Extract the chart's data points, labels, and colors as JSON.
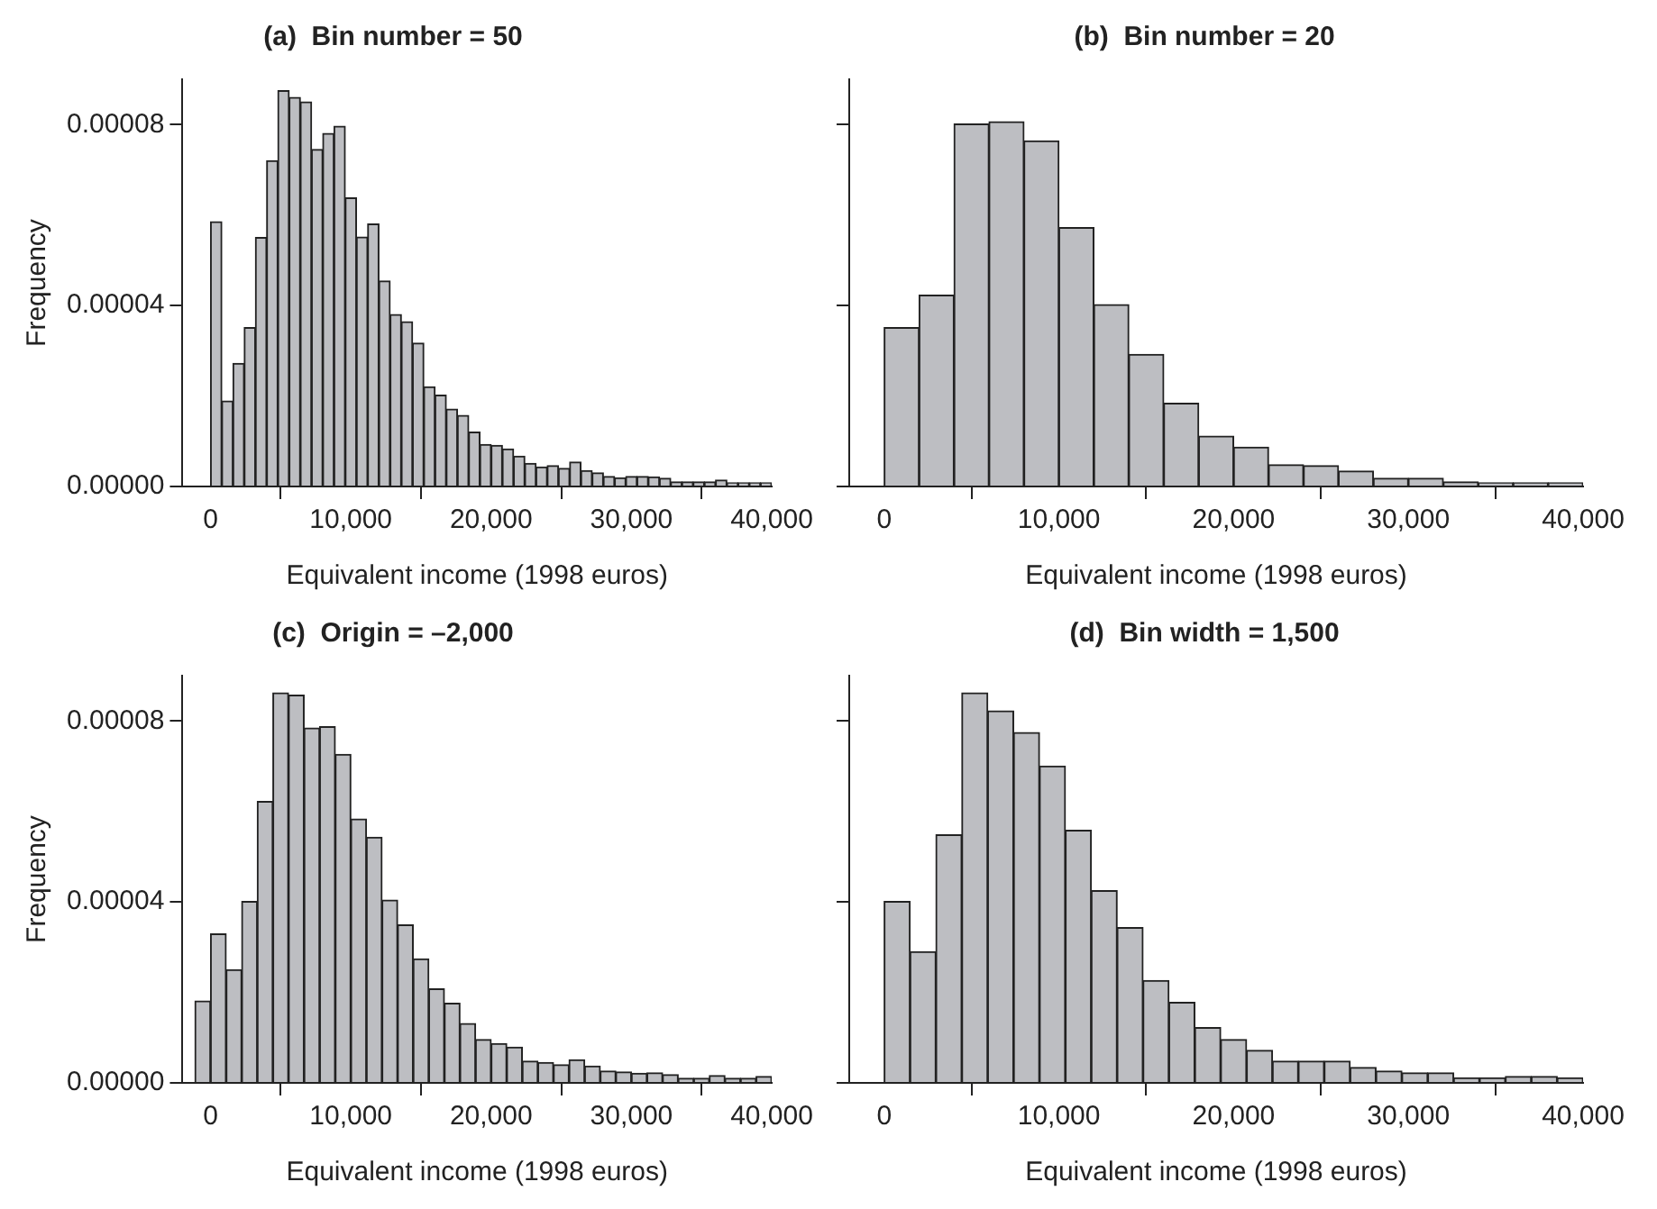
{
  "chart_data": [
    {
      "type": "histogram",
      "title": "(a)  Bin number = 50",
      "xlabel": "Equivalent income (1998 euros)",
      "ylabel": "Frequency",
      "color": "#bdbec2",
      "bins": [
        0,
        800,
        1600,
        2400,
        3200,
        4000,
        4800,
        5600,
        6400,
        7200,
        8000,
        8800,
        9600,
        10400,
        11200,
        12000,
        12800,
        13600,
        14400,
        15200,
        16000,
        16800,
        17600,
        18400,
        19200,
        20000,
        20800,
        21600,
        22400,
        23200,
        24000,
        24800,
        25600,
        26400,
        27200,
        28000,
        28800,
        29600,
        30400,
        31200,
        32000,
        32800,
        33600,
        34400,
        35200,
        36000,
        36800,
        37600,
        38400,
        39200,
        40000
      ],
      "values": [
        5.85e-05,
        1.89e-05,
        2.72e-05,
        3.51e-05,
        5.5e-05,
        7.2e-05,
        8.75e-05,
        8.6e-05,
        8.5e-05,
        7.45e-05,
        7.8e-05,
        7.96e-05,
        6.38e-05,
        5.51e-05,
        5.8e-05,
        4.54e-05,
        3.8e-05,
        3.64e-05,
        3.17e-05,
        2.2e-05,
        2.02e-05,
        1.71e-05,
        1.57e-05,
        1.2e-05,
        9.3e-06,
        9.1e-06,
        8.3e-06,
        6.7e-06,
        5.1e-06,
        4.3e-06,
        4.6e-06,
        4e-06,
        5.4e-06,
        3.5e-06,
        3e-06,
        2.2e-06,
        1.9e-06,
        2.2e-06,
        2.2e-06,
        2.1e-06,
        1.8e-06,
        1e-06,
        1e-06,
        1e-06,
        1e-06,
        1.4e-06,
        8e-07,
        8e-07,
        8e-07,
        8e-07
      ],
      "xlim": [
        -2000,
        40000
      ],
      "ylim": [
        0,
        9e-05
      ],
      "xticks": [
        {
          "value": 0,
          "label": "0"
        },
        {
          "value": 10000,
          "label": "10,000"
        },
        {
          "value": 20000,
          "label": "20,000"
        },
        {
          "value": 30000,
          "label": "30,000"
        },
        {
          "value": 40000,
          "label": "40,000"
        }
      ],
      "yticks": [
        {
          "value": 0,
          "label": "0.00000"
        },
        {
          "value": 4e-05,
          "label": "0.00004"
        },
        {
          "value": 8e-05,
          "label": "0.00008"
        }
      ]
    },
    {
      "type": "histogram",
      "title": "(b)  Bin number = 20",
      "xlabel": "Equivalent income (1998 euros)",
      "color": "#bdbec2",
      "tick_labels": "x",
      "bins": [
        0,
        2000,
        4000,
        6000,
        8000,
        10000,
        12000,
        14000,
        16000,
        18000,
        20000,
        22000,
        24000,
        26000,
        28000,
        30000,
        32000,
        34000,
        36000,
        38000,
        40000
      ],
      "values": [
        3.51e-05,
        4.23e-05,
        8.01e-05,
        8.06e-05,
        7.64e-05,
        5.72e-05,
        4.02e-05,
        2.92e-05,
        1.84e-05,
        1.11e-05,
        8.7e-06,
        4.8e-06,
        4.6e-06,
        3.4e-06,
        1.8e-06,
        1.8e-06,
        1e-06,
        8e-07,
        8e-07,
        8e-07
      ],
      "xlim": [
        -2000,
        40000
      ],
      "ylim": [
        0,
        9e-05
      ],
      "xticks": [
        {
          "value": 0,
          "label": "0"
        },
        {
          "value": 10000,
          "label": "10,000"
        },
        {
          "value": 20000,
          "label": "20,000"
        },
        {
          "value": 30000,
          "label": "30,000"
        },
        {
          "value": 40000,
          "label": "40,000"
        }
      ],
      "yticks": [
        {
          "value": 0,
          "label": null
        },
        {
          "value": 4e-05,
          "label": null
        },
        {
          "value": 8e-05,
          "label": null
        }
      ]
    },
    {
      "type": "histogram",
      "title": "(c)  Origin = –2,000",
      "xlabel": "Equivalent income (1998 euros)",
      "ylabel": "Frequency",
      "color": "#bdbec2",
      "bins": [
        -1111,
        0,
        1111,
        2222,
        3333,
        4444,
        5556,
        6667,
        7778,
        8889,
        10000,
        11111,
        12222,
        13333,
        14444,
        15556,
        16667,
        17778,
        18889,
        20000,
        21111,
        22222,
        23333,
        24444,
        25556,
        26667,
        27778,
        28889,
        30000,
        31111,
        32222,
        33333,
        34444,
        35556,
        36667,
        37778,
        38889,
        40000
      ],
      "values": [
        1.81e-05,
        3.29e-05,
        2.5e-05,
        4.01e-05,
        6.22e-05,
        8.62e-05,
        8.57e-05,
        7.84e-05,
        7.87e-05,
        7.26e-05,
        5.83e-05,
        5.43e-05,
        4.04e-05,
        3.49e-05,
        2.74e-05,
        2.08e-05,
        1.76e-05,
        1.31e-05,
        9.6e-06,
        8.7e-06,
        7.9e-06,
        4.8e-06,
        4.5e-06,
        4e-06,
        5.1e-06,
        3.7e-06,
        2.6e-06,
        2.4e-06,
        2.1e-06,
        2.2e-06,
        1.8e-06,
        1e-06,
        1e-06,
        1.6e-06,
        1e-06,
        1e-06,
        1.4e-06
      ],
      "xlim": [
        -2000,
        40000
      ],
      "ylim": [
        0,
        9e-05
      ],
      "xticks": [
        {
          "value": 0,
          "label": "0"
        },
        {
          "value": 10000,
          "label": "10,000"
        },
        {
          "value": 20000,
          "label": "20,000"
        },
        {
          "value": 30000,
          "label": "30,000"
        },
        {
          "value": 40000,
          "label": "40,000"
        }
      ],
      "yticks": [
        {
          "value": 0,
          "label": "0.00000"
        },
        {
          "value": 4e-05,
          "label": "0.00004"
        },
        {
          "value": 8e-05,
          "label": "0.00008"
        }
      ]
    },
    {
      "type": "histogram",
      "title": "(d)  Bin width = 1,500",
      "xlabel": "Equivalent income (1998 euros)",
      "color": "#bdbec2",
      "tick_labels": "x",
      "bins": [
        0,
        1481,
        2963,
        4444,
        5926,
        7407,
        8889,
        10370,
        11852,
        13333,
        14815,
        16296,
        17778,
        19259,
        20741,
        22222,
        23704,
        25185,
        26667,
        28148,
        29630,
        31111,
        32593,
        34074,
        35556,
        37037,
        38519,
        40000
      ],
      "values": [
        4.01e-05,
        2.9e-05,
        5.48e-05,
        8.62e-05,
        8.22e-05,
        7.74e-05,
        7e-05,
        5.58e-05,
        4.25e-05,
        3.43e-05,
        2.26e-05,
        1.78e-05,
        1.22e-05,
        9.6e-06,
        7.2e-06,
        4.8e-06,
        4.8e-06,
        4.8e-06,
        3.4e-06,
        2.6e-06,
        2.2e-06,
        2.2e-06,
        1.1e-06,
        1.1e-06,
        1.4e-06,
        1.4e-06,
        1.1e-06
      ],
      "xlim": [
        -2000,
        40000
      ],
      "ylim": [
        0,
        9e-05
      ],
      "xticks": [
        {
          "value": 0,
          "label": "0"
        },
        {
          "value": 10000,
          "label": "10,000"
        },
        {
          "value": 20000,
          "label": "20,000"
        },
        {
          "value": 30000,
          "label": "30,000"
        },
        {
          "value": 40000,
          "label": "40,000"
        }
      ],
      "yticks": [
        {
          "value": 0,
          "label": null
        },
        {
          "value": 4e-05,
          "label": null
        },
        {
          "value": 8e-05,
          "label": null
        }
      ]
    }
  ]
}
